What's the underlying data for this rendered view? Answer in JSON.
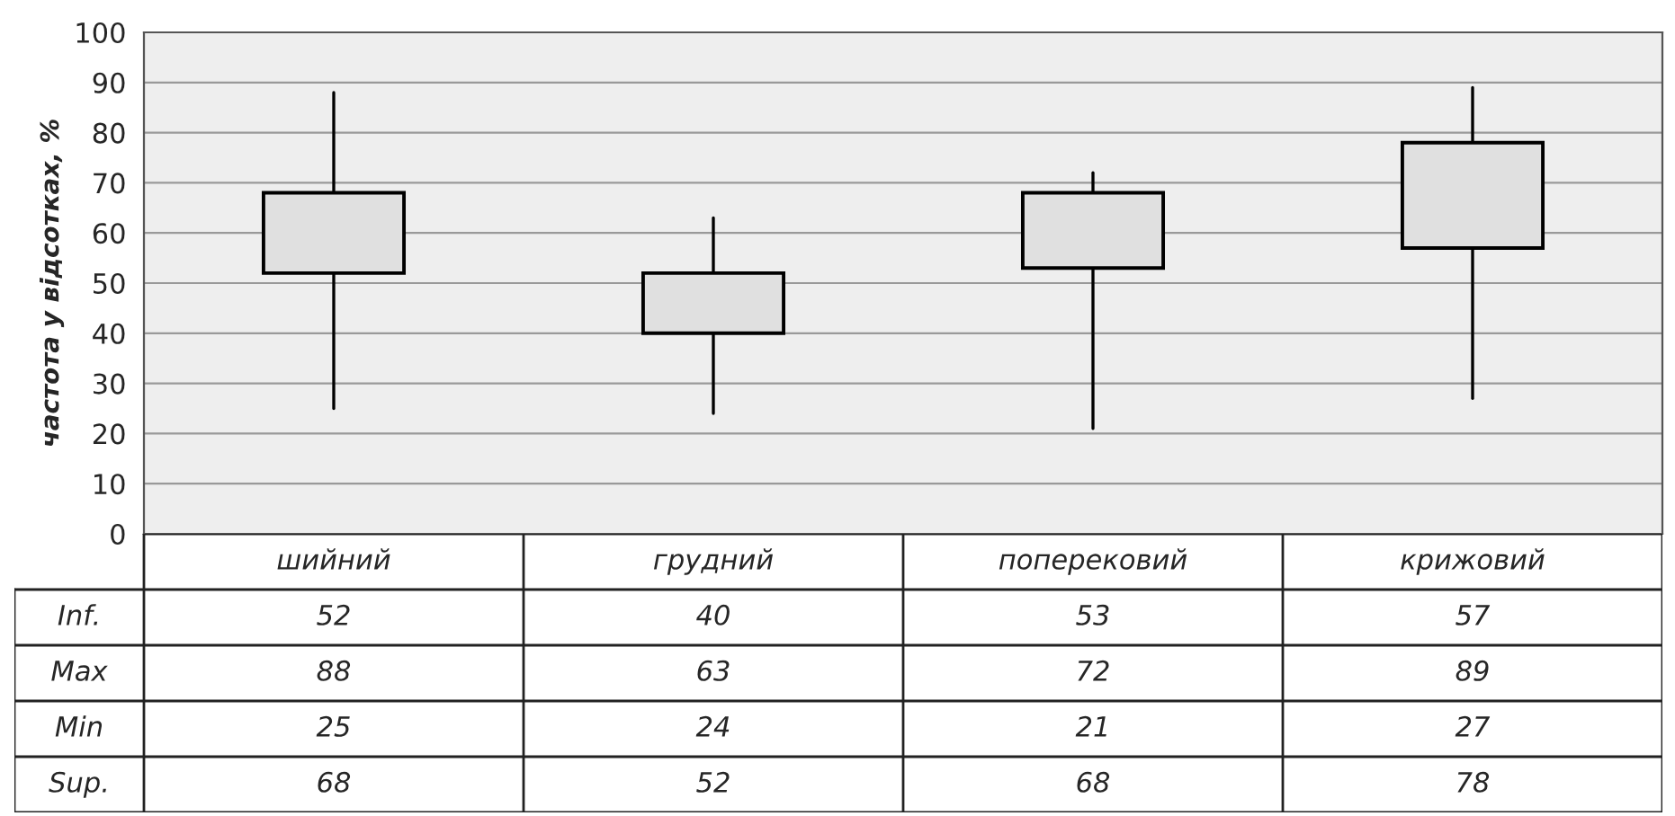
{
  "chart_data": {
    "type": "candlestick",
    "ylabel": "частота у відсотках, %",
    "categories": [
      "шийний",
      "грудний",
      "поперековий",
      "крижовий"
    ],
    "ohlc": [
      [
        52,
        88,
        25,
        68
      ],
      [
        40,
        63,
        24,
        52
      ],
      [
        53,
        72,
        21,
        68
      ],
      [
        57,
        89,
        27,
        78
      ]
    ],
    "color": "#e0e0e0",
    "ylim": [
      0,
      100
    ],
    "yticks": [
      0,
      10,
      20,
      30,
      40,
      50,
      60,
      70,
      80,
      90,
      100
    ],
    "grid": "y",
    "data_labels": true,
    "value_labels": [
      [
        "52",
        "88",
        "25",
        "68"
      ],
      [
        "40",
        "63",
        "24",
        "52"
      ],
      [
        "53",
        "72",
        "21",
        "68"
      ],
      [
        "57",
        "89",
        "27",
        "78"
      ]
    ],
    "annotations": [
      "Inf.",
      "Max",
      "Min",
      "Sup."
    ]
  }
}
